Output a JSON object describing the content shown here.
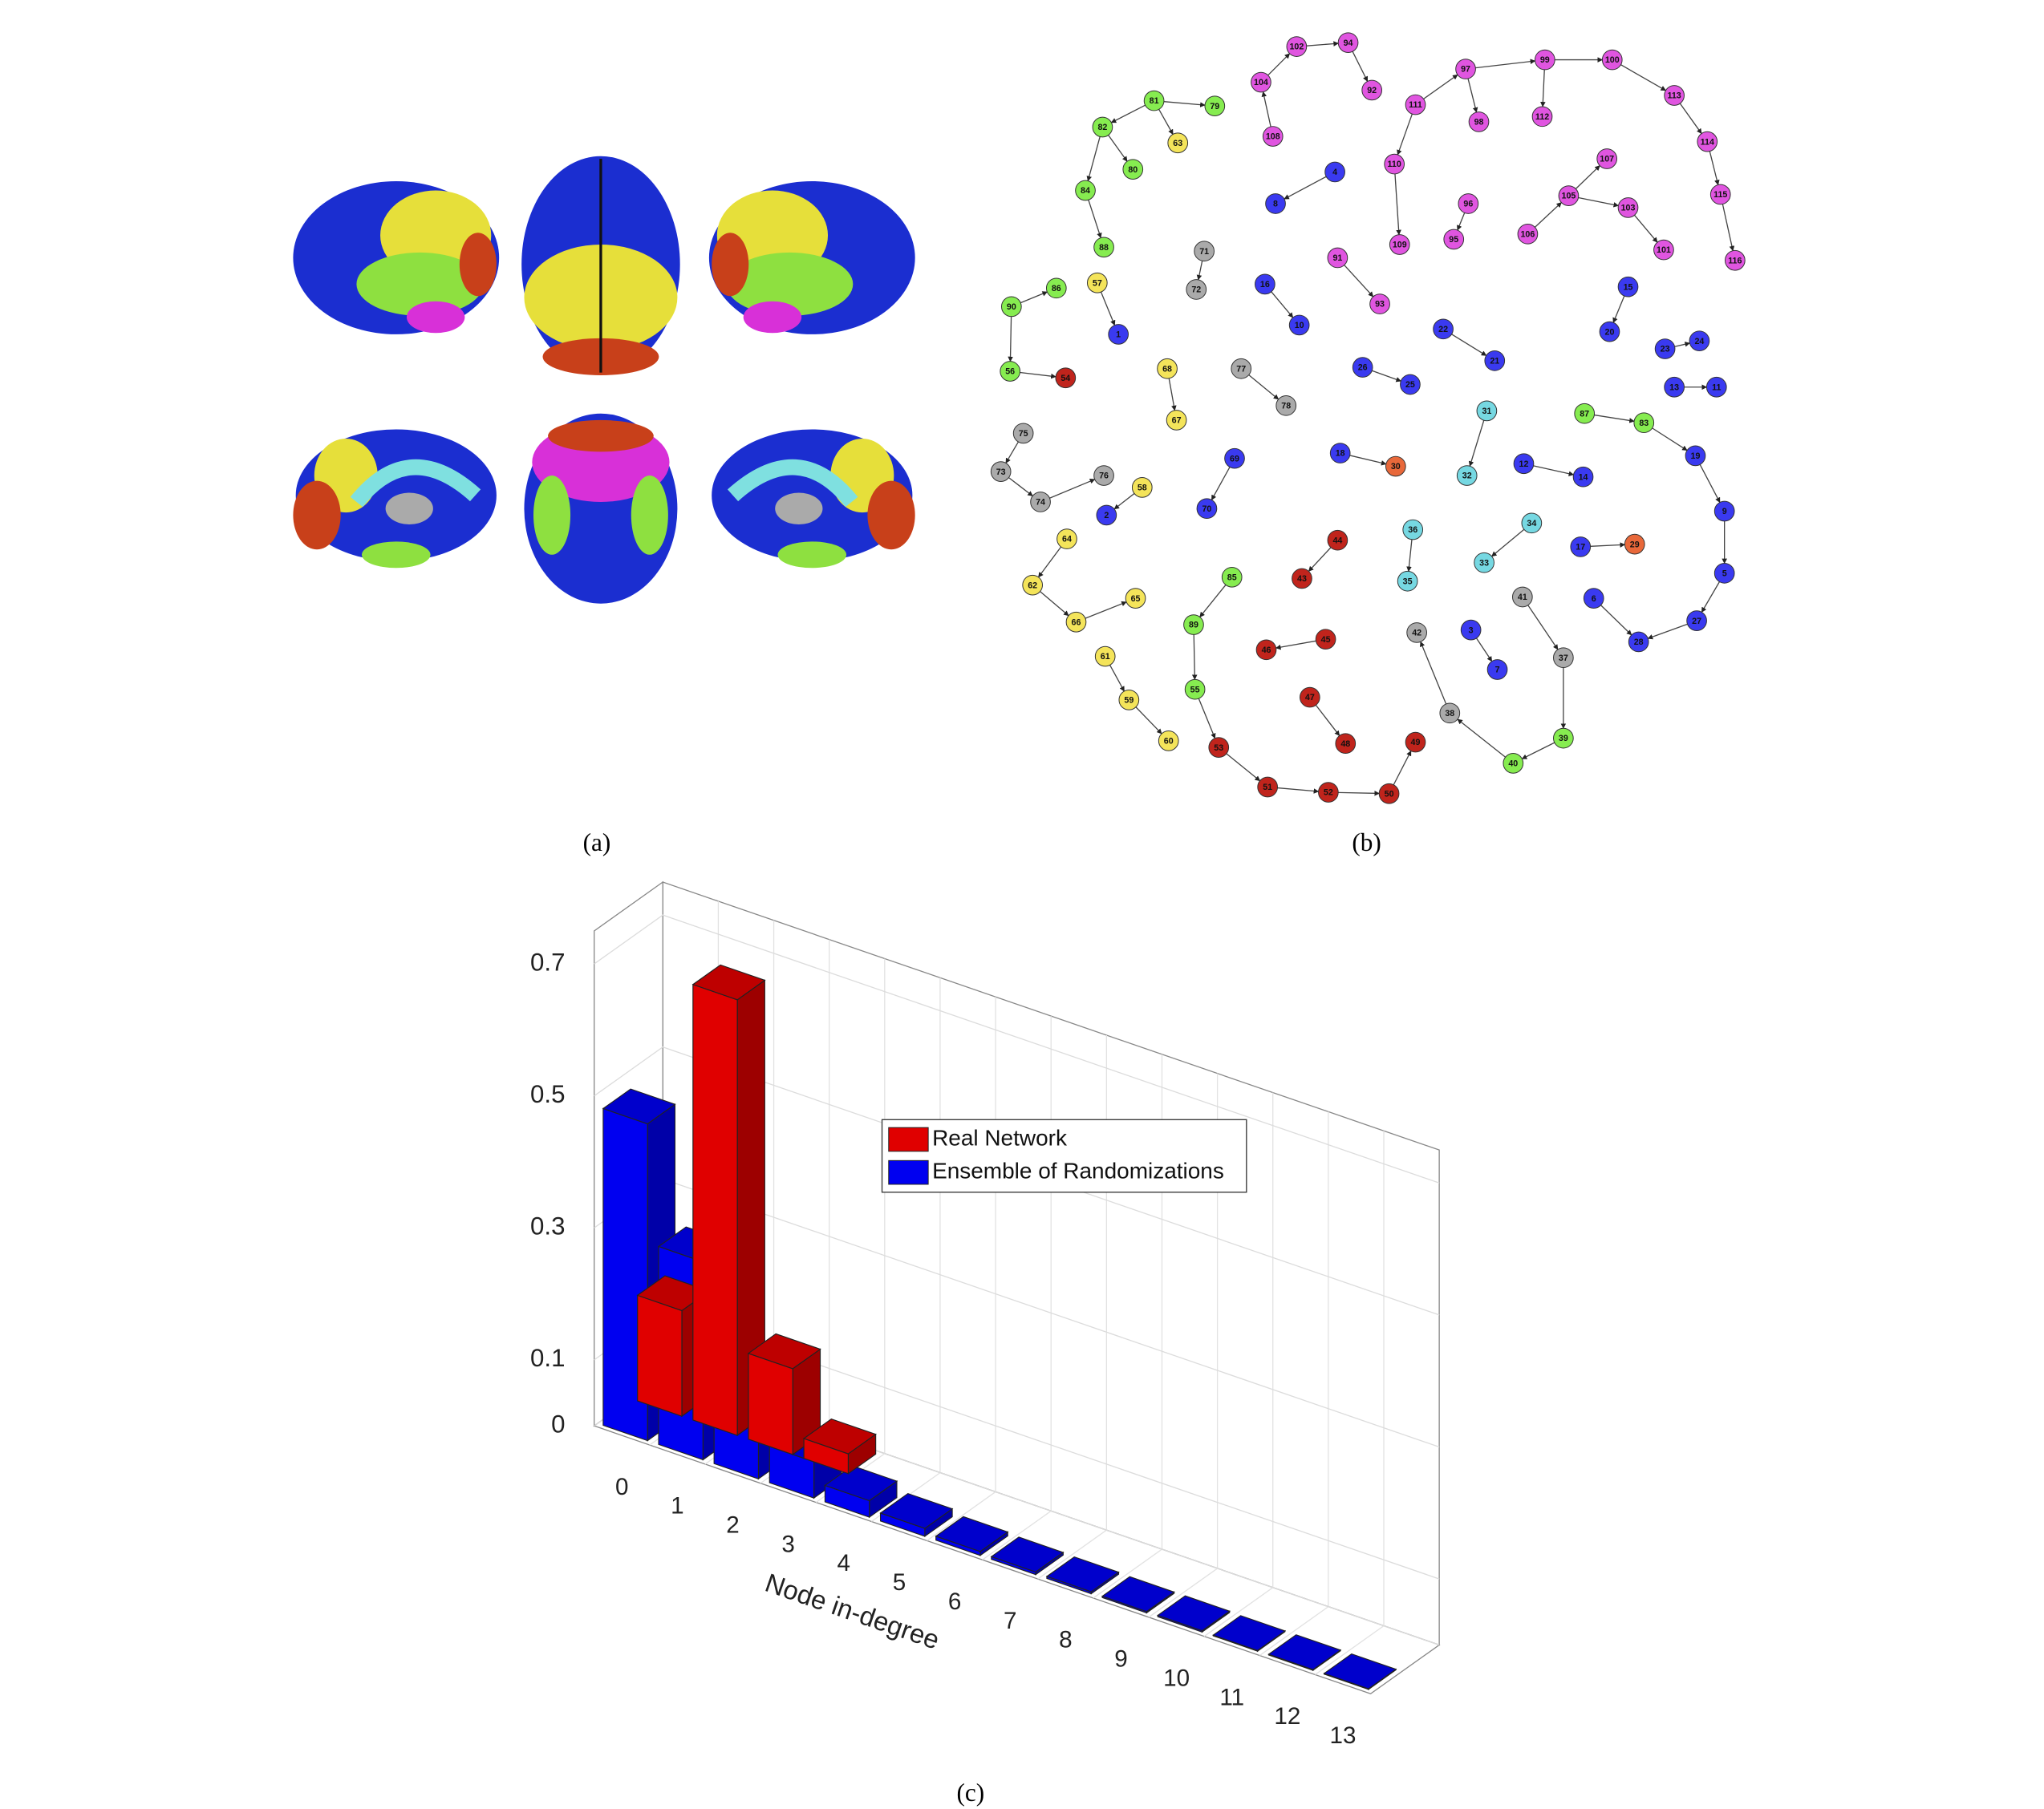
{
  "panel_a": {
    "caption": "(a)"
  },
  "network": {
    "caption": "(b)",
    "nodes": [
      {
        "label": "102",
        "color": "#e055e0"
      },
      {
        "label": "94",
        "color": "#e055e0"
      },
      {
        "label": "92",
        "color": "#e055e0"
      },
      {
        "label": "104",
        "color": "#e055e0"
      },
      {
        "label": "108",
        "color": "#e055e0"
      },
      {
        "label": "97",
        "color": "#e055e0"
      },
      {
        "label": "99",
        "color": "#e055e0"
      },
      {
        "label": "100",
        "color": "#e055e0"
      },
      {
        "label": "113",
        "color": "#e055e0"
      },
      {
        "label": "114",
        "color": "#e055e0"
      },
      {
        "label": "115",
        "color": "#e055e0"
      },
      {
        "label": "116",
        "color": "#e055e0"
      },
      {
        "label": "111",
        "color": "#e055e0"
      },
      {
        "label": "98",
        "color": "#e055e0"
      },
      {
        "label": "112",
        "color": "#e055e0"
      },
      {
        "label": "110",
        "color": "#e055e0"
      },
      {
        "label": "109",
        "color": "#e055e0"
      },
      {
        "label": "107",
        "color": "#e055e0"
      },
      {
        "label": "105",
        "color": "#e055e0"
      },
      {
        "label": "103",
        "color": "#e055e0"
      },
      {
        "label": "101",
        "color": "#e055e0"
      },
      {
        "label": "106",
        "color": "#e055e0"
      },
      {
        "label": "96",
        "color": "#e055e0"
      },
      {
        "label": "95",
        "color": "#e055e0"
      },
      {
        "label": "91",
        "color": "#e055e0"
      },
      {
        "label": "93",
        "color": "#e055e0"
      },
      {
        "label": "81",
        "color": "#86ec50"
      },
      {
        "label": "79",
        "color": "#86ec50"
      },
      {
        "label": "82",
        "color": "#86ec50"
      },
      {
        "label": "80",
        "color": "#86ec50"
      },
      {
        "label": "84",
        "color": "#86ec50"
      },
      {
        "label": "88",
        "color": "#86ec50"
      },
      {
        "label": "90",
        "color": "#86ec50"
      },
      {
        "label": "86",
        "color": "#86ec50"
      },
      {
        "label": "56",
        "color": "#86ec50"
      },
      {
        "label": "87",
        "color": "#86ec50"
      },
      {
        "label": "83",
        "color": "#86ec50"
      },
      {
        "label": "85",
        "color": "#86ec50"
      },
      {
        "label": "89",
        "color": "#86ec50"
      },
      {
        "label": "55",
        "color": "#86ec50"
      },
      {
        "label": "39",
        "color": "#86ec50"
      },
      {
        "label": "40",
        "color": "#86ec50"
      },
      {
        "label": "63",
        "color": "#f4e45a"
      },
      {
        "label": "57",
        "color": "#f4e45a"
      },
      {
        "label": "68",
        "color": "#f4e45a"
      },
      {
        "label": "67",
        "color": "#f4e45a"
      },
      {
        "label": "58",
        "color": "#f4e45a"
      },
      {
        "label": "64",
        "color": "#f4e45a"
      },
      {
        "label": "62",
        "color": "#f4e45a"
      },
      {
        "label": "66",
        "color": "#f4e45a"
      },
      {
        "label": "65",
        "color": "#f4e45a"
      },
      {
        "label": "61",
        "color": "#f4e45a"
      },
      {
        "label": "59",
        "color": "#f4e45a"
      },
      {
        "label": "60",
        "color": "#f4e45a"
      },
      {
        "label": "4",
        "color": "#3a3af0"
      },
      {
        "label": "8",
        "color": "#3a3af0"
      },
      {
        "label": "1",
        "color": "#3a3af0"
      },
      {
        "label": "16",
        "color": "#3a3af0"
      },
      {
        "label": "10",
        "color": "#3a3af0"
      },
      {
        "label": "22",
        "color": "#3a3af0"
      },
      {
        "label": "21",
        "color": "#3a3af0"
      },
      {
        "label": "26",
        "color": "#3a3af0"
      },
      {
        "label": "25",
        "color": "#3a3af0"
      },
      {
        "label": "15",
        "color": "#3a3af0"
      },
      {
        "label": "20",
        "color": "#3a3af0"
      },
      {
        "label": "23",
        "color": "#3a3af0"
      },
      {
        "label": "24",
        "color": "#3a3af0"
      },
      {
        "label": "13",
        "color": "#3a3af0"
      },
      {
        "label": "11",
        "color": "#3a3af0"
      },
      {
        "label": "69",
        "color": "#3a3af0"
      },
      {
        "label": "70",
        "color": "#3a3af0"
      },
      {
        "label": "18",
        "color": "#3a3af0"
      },
      {
        "label": "2",
        "color": "#3a3af0"
      },
      {
        "label": "12",
        "color": "#3a3af0"
      },
      {
        "label": "14",
        "color": "#3a3af0"
      },
      {
        "label": "19",
        "color": "#3a3af0"
      },
      {
        "label": "9",
        "color": "#3a3af0"
      },
      {
        "label": "5",
        "color": "#3a3af0"
      },
      {
        "label": "27",
        "color": "#3a3af0"
      },
      {
        "label": "28",
        "color": "#3a3af0"
      },
      {
        "label": "6",
        "color": "#3a3af0"
      },
      {
        "label": "17",
        "color": "#3a3af0"
      },
      {
        "label": "3",
        "color": "#3a3af0"
      },
      {
        "label": "7",
        "color": "#3a3af0"
      },
      {
        "label": "31",
        "color": "#76d8e2"
      },
      {
        "label": "32",
        "color": "#76d8e2"
      },
      {
        "label": "36",
        "color": "#76d8e2"
      },
      {
        "label": "35",
        "color": "#76d8e2"
      },
      {
        "label": "34",
        "color": "#76d8e2"
      },
      {
        "label": "33",
        "color": "#76d8e2"
      },
      {
        "label": "30",
        "color": "#e8683a"
      },
      {
        "label": "29",
        "color": "#e8683a"
      },
      {
        "label": "71",
        "color": "#aaaaaa"
      },
      {
        "label": "72",
        "color": "#aaaaaa"
      },
      {
        "label": "77",
        "color": "#aaaaaa"
      },
      {
        "label": "78",
        "color": "#aaaaaa"
      },
      {
        "label": "75",
        "color": "#aaaaaa"
      },
      {
        "label": "73",
        "color": "#aaaaaa"
      },
      {
        "label": "74",
        "color": "#aaaaaa"
      },
      {
        "label": "76",
        "color": "#aaaaaa"
      },
      {
        "label": "41",
        "color": "#aaaaaa"
      },
      {
        "label": "37",
        "color": "#aaaaaa"
      },
      {
        "label": "42",
        "color": "#aaaaaa"
      },
      {
        "label": "38",
        "color": "#aaaaaa"
      },
      {
        "label": "54",
        "color": "#c0241c"
      },
      {
        "label": "44",
        "color": "#c0241c"
      },
      {
        "label": "43",
        "color": "#c0241c"
      },
      {
        "label": "45",
        "color": "#c0241c"
      },
      {
        "label": "46",
        "color": "#c0241c"
      },
      {
        "label": "47",
        "color": "#c0241c"
      },
      {
        "label": "48",
        "color": "#c0241c"
      },
      {
        "label": "49",
        "color": "#c0241c"
      },
      {
        "label": "50",
        "color": "#c0241c"
      },
      {
        "label": "52",
        "color": "#c0241c"
      },
      {
        "label": "51",
        "color": "#c0241c"
      },
      {
        "label": "53",
        "color": "#c0241c"
      }
    ]
  },
  "chart_data": {
    "type": "bar",
    "caption": "(c)",
    "xlabel": "Node in-degree",
    "categories": [
      "0",
      "1",
      "2",
      "3",
      "4",
      "5",
      "6",
      "7",
      "8",
      "9",
      "10",
      "11",
      "12",
      "13"
    ],
    "series": [
      {
        "name": "Real Network",
        "color": "#e00000",
        "values": [
          0.16,
          0.66,
          0.13,
          0.03,
          null,
          null,
          null,
          null,
          null,
          null,
          null,
          null,
          null,
          null
        ]
      },
      {
        "name": "Ensemble of Randomizations",
        "color": "#0000f0",
        "values": [
          0.48,
          0.3,
          0.12,
          0.055,
          0.025,
          0.012,
          0.006,
          0.004,
          0.003,
          0.002,
          0.002,
          0.001,
          0.001,
          0.001
        ]
      }
    ],
    "ylim": [
      0,
      0.75
    ],
    "yticks": [
      0,
      0.1,
      0.3,
      0.5,
      0.7
    ],
    "grid": true,
    "legend": "center"
  }
}
